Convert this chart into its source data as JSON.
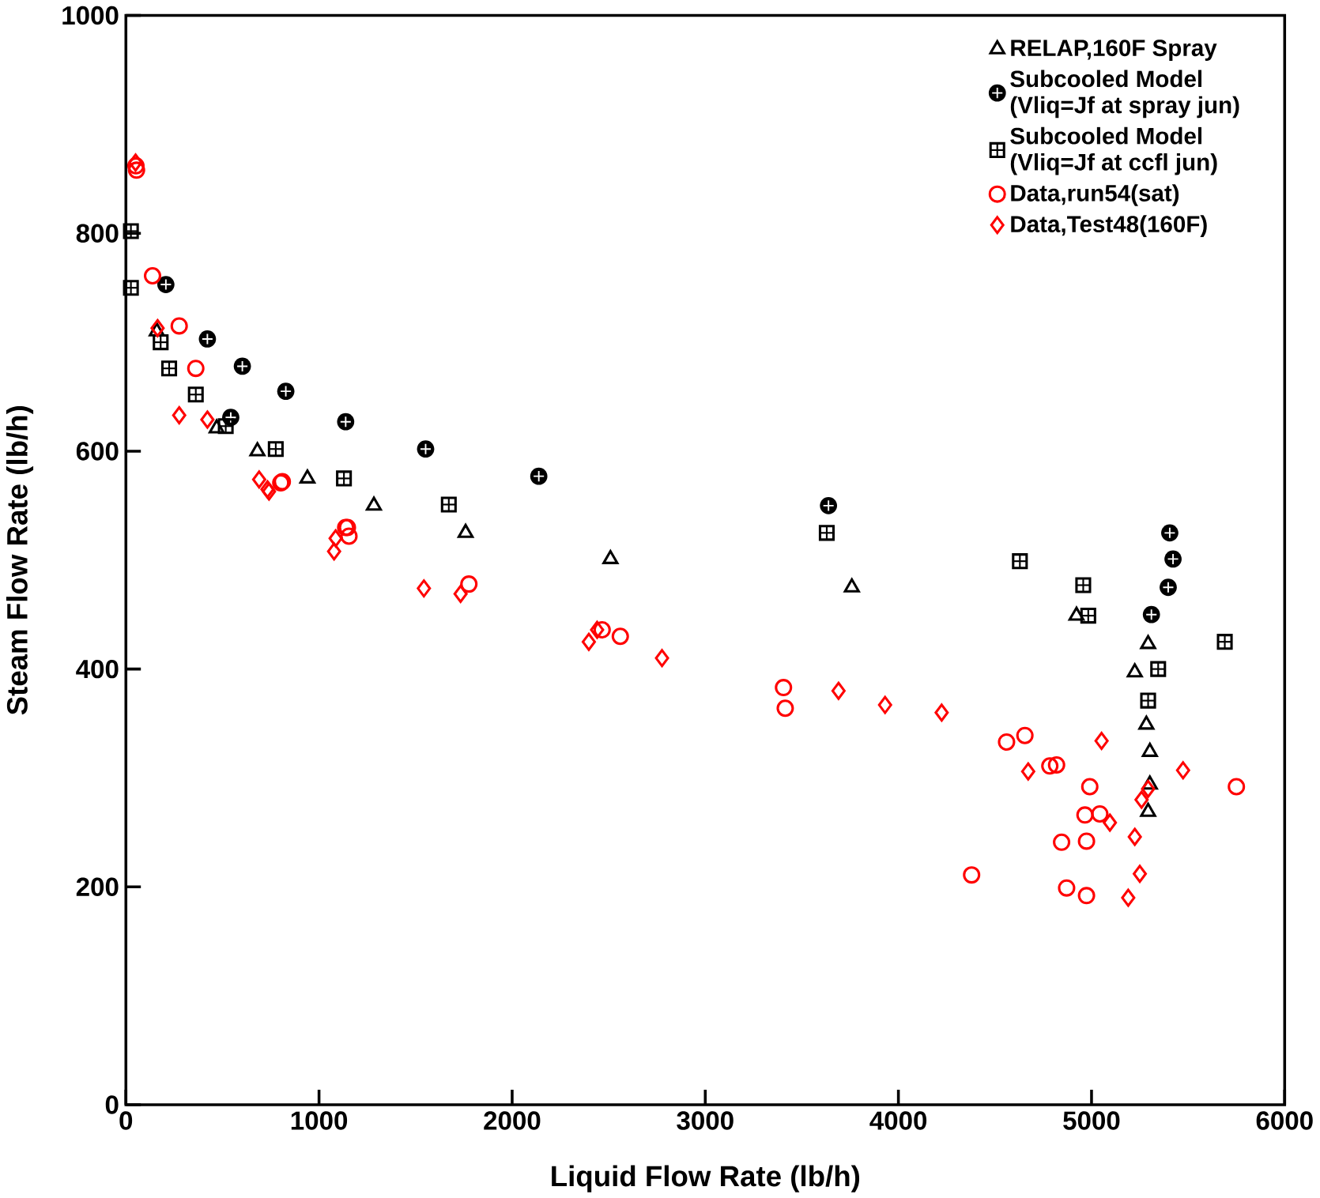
{
  "chart_data": {
    "type": "scatter",
    "xlabel": "Liquid Flow Rate (lb/h)",
    "ylabel": "Steam Flow Rate (lb/h)",
    "xlim": [
      0,
      6000
    ],
    "ylim": [
      0,
      1000
    ],
    "xticks": [
      0,
      1000,
      2000,
      3000,
      4000,
      5000,
      6000
    ],
    "yticks": [
      0,
      200,
      400,
      600,
      800,
      1000
    ],
    "grid": false,
    "legend": "top right",
    "series": [
      {
        "name": "RELAP,160F Spray",
        "color": "#000000",
        "marker": "triangle",
        "x": [
          160,
          470,
          681,
          940,
          1284,
          1759,
          2509,
          3759,
          4922,
          5293,
          5224,
          5284,
          5302,
          5302,
          5293
        ],
        "values": [
          710,
          621,
          600,
          575,
          550,
          525,
          501,
          475,
          449,
          423,
          397,
          349,
          324,
          294,
          269
        ]
      },
      {
        "name": "Subcooled Model\n(Vliq=Jf at spray jun)",
        "color": "#000000",
        "marker": "circle",
        "x": [
          207,
          422,
          543,
          603,
          828,
          1138,
          1552,
          2138,
          3638,
          5405,
          5422,
          5397,
          5310
        ],
        "values": [
          753,
          703,
          631,
          678,
          655,
          627,
          602,
          577,
          550,
          525,
          501,
          475,
          450
        ]
      },
      {
        "name": "Subcooled Model\n(Vliq=Jf at ccfl jun)",
        "color": "#000000",
        "marker": "square",
        "x": [
          26,
          26,
          180,
          224,
          362,
          517,
          776,
          1129,
          1672,
          3629,
          4629,
          4957,
          4983,
          5345,
          5293,
          5690
        ],
        "values": [
          802,
          750,
          700,
          676,
          652,
          623,
          602,
          575,
          551,
          525,
          499,
          477,
          449,
          400,
          371,
          425
        ]
      },
      {
        "name": "Data,run54(sat)",
        "color": "#ff0000",
        "marker": "circle",
        "x": [
          52,
          55,
          138,
          276,
          362,
          802,
          810,
          1138,
          1147,
          1155,
          1776,
          2466,
          2560,
          3405,
          3414,
          4560,
          4655,
          4784,
          4819,
          4991,
          4966,
          5043,
          4845,
          4974,
          4379,
          4871,
          4974,
          5750
        ],
        "values": [
          862,
          858,
          761,
          715,
          676,
          571,
          572,
          530,
          530,
          522,
          478,
          436,
          430,
          383,
          364,
          333,
          339,
          311,
          312,
          292,
          266,
          267,
          241,
          242,
          211,
          199,
          192,
          292
        ]
      },
      {
        "name": "Data,Test48(160F)",
        "color": "#ff0000",
        "marker": "diamond",
        "x": [
          50,
          164,
          276,
          422,
          690,
          733,
          741,
          1078,
          1086,
          1543,
          1733,
          2397,
          2440,
          2776,
          3690,
          3931,
          4224,
          5052,
          4672,
          5474,
          5259,
          5293,
          5095,
          5224,
          5250,
          5190
        ],
        "values": [
          865,
          713,
          633,
          629,
          574,
          565,
          563,
          508,
          520,
          474,
          469,
          425,
          436,
          410,
          380,
          367,
          360,
          334,
          306,
          307,
          280,
          290,
          259,
          246,
          212,
          190
        ]
      }
    ]
  }
}
